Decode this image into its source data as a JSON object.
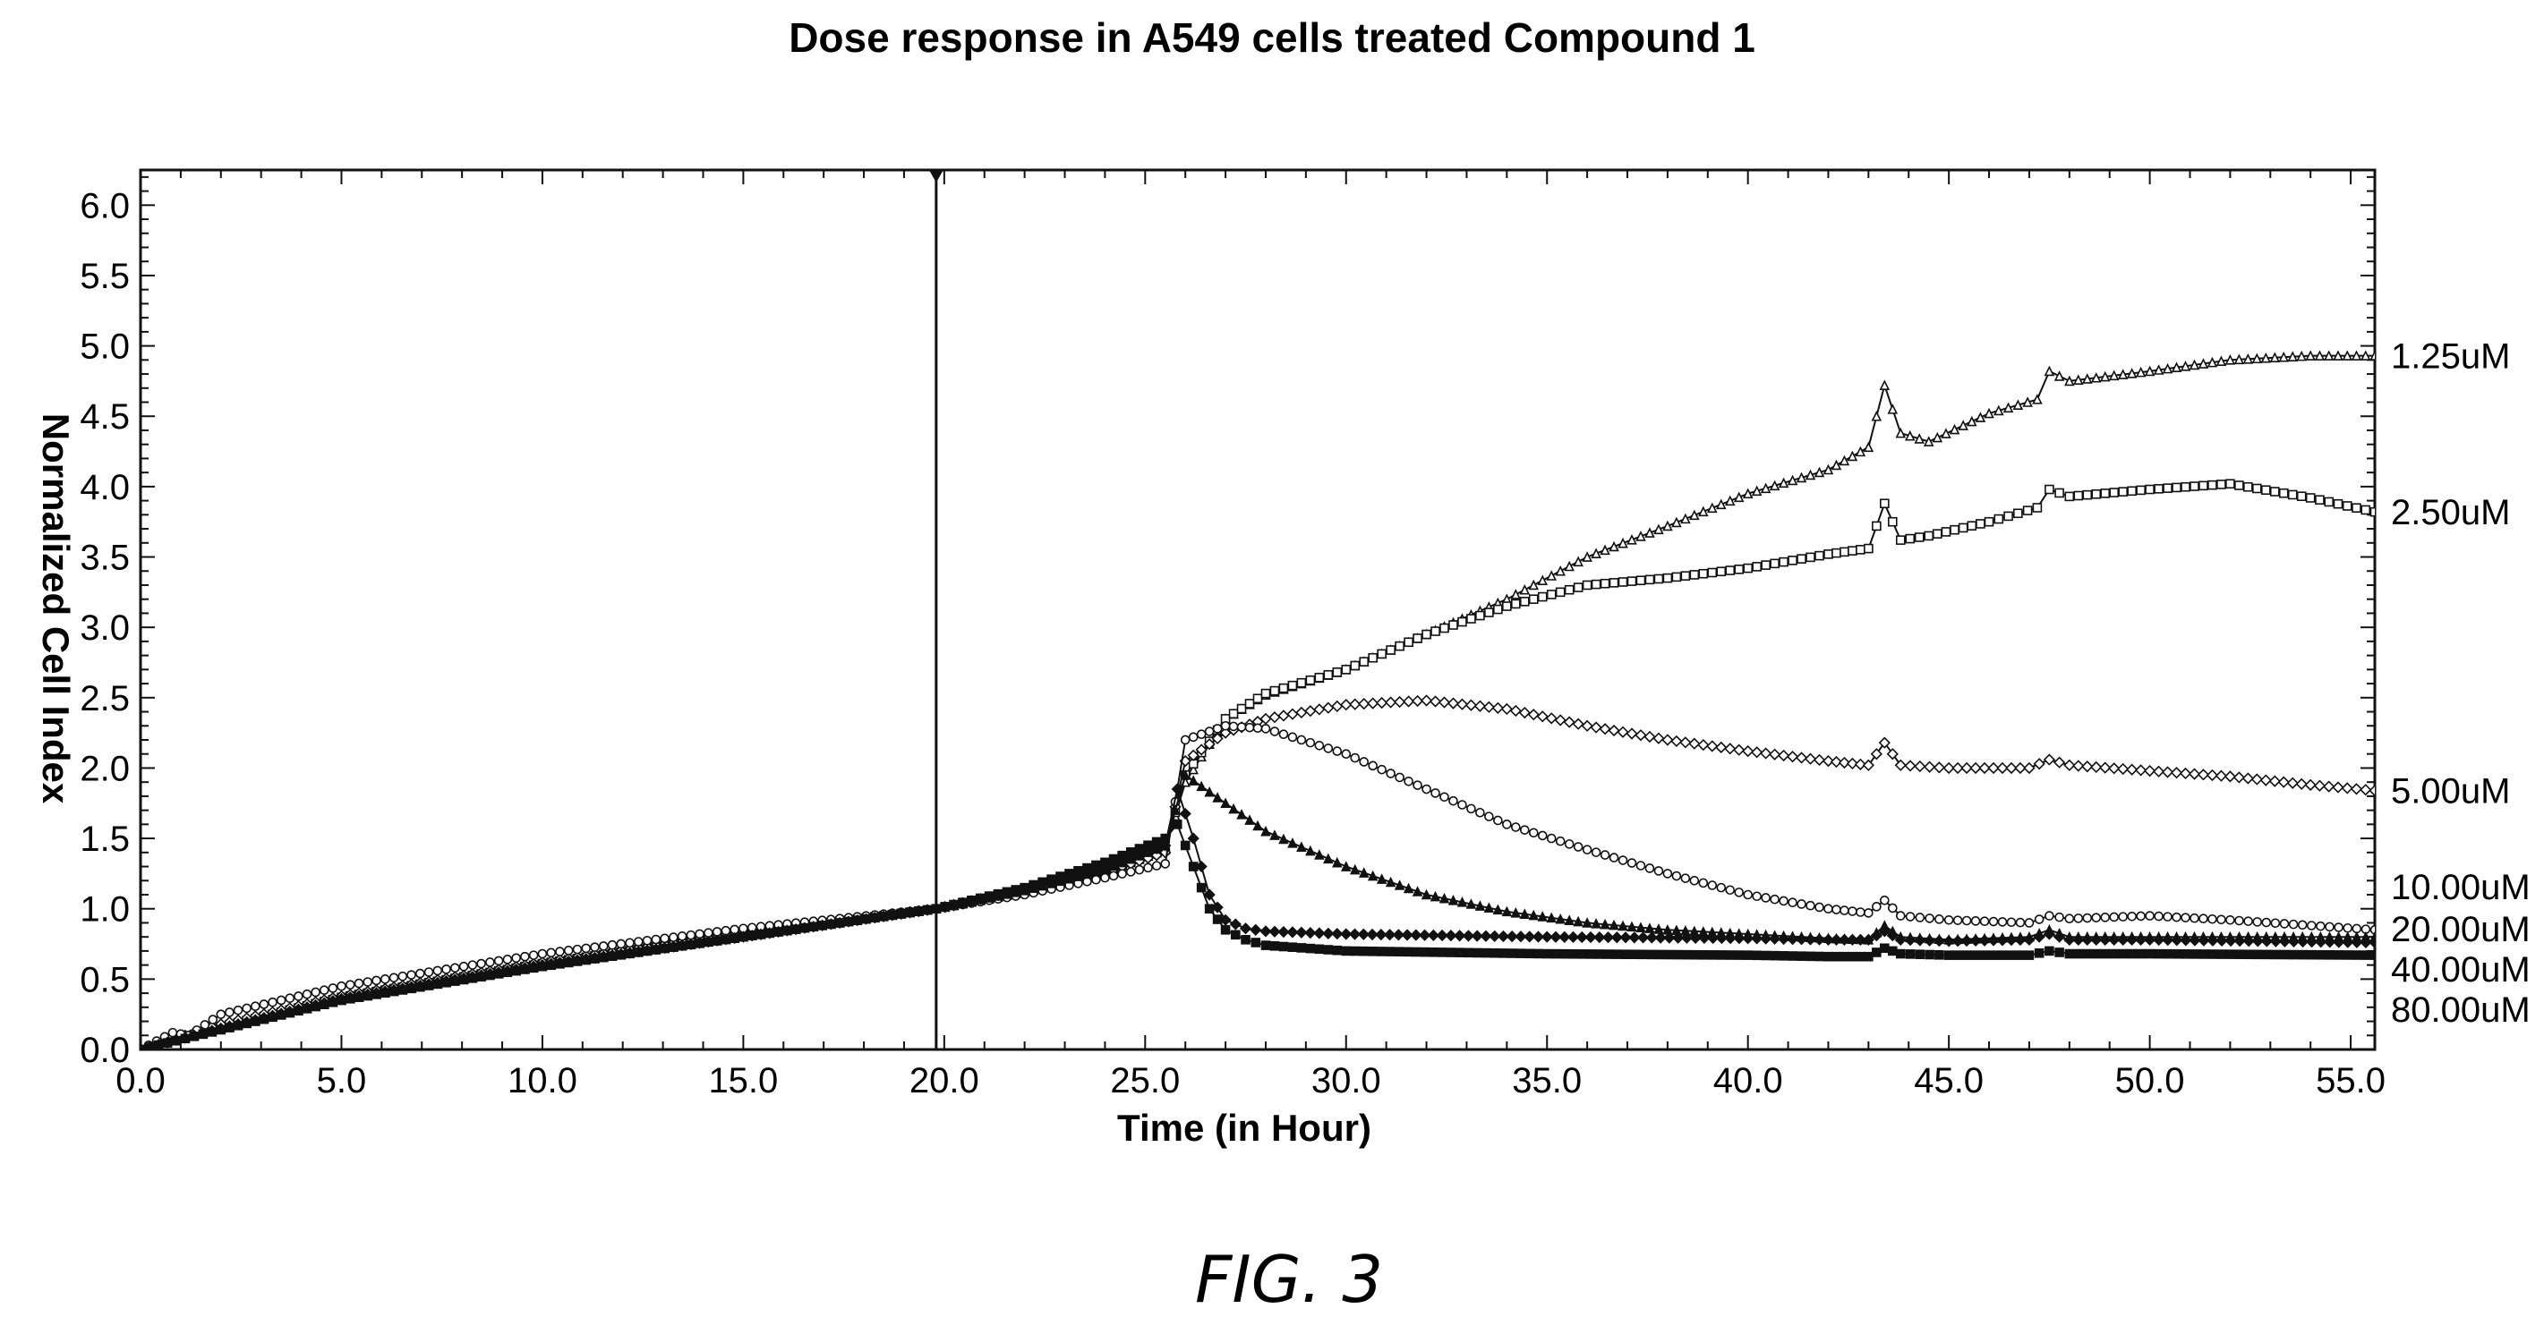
{
  "chart_data": {
    "type": "line",
    "title": "Dose response in A549 cells treated Compound 1",
    "xlabel": "Time (in Hour)",
    "ylabel": "Normalized Cell Index",
    "xlim": [
      0,
      55.6
    ],
    "ylim": [
      0,
      6.25
    ],
    "x_ticks": [
      "0.0",
      "5.0",
      "10.0",
      "15.0",
      "20.0",
      "25.0",
      "30.0",
      "35.0",
      "40.0",
      "45.0",
      "50.0",
      "55.0"
    ],
    "y_ticks": [
      "0.0",
      "0.5",
      "1.0",
      "1.5",
      "2.0",
      "2.5",
      "3.0",
      "3.5",
      "4.0",
      "4.5",
      "5.0",
      "5.5",
      "6.0"
    ],
    "marker_line_x": 19.8,
    "grid": false,
    "series": [
      {
        "name": "1.25uM",
        "marker": "triangle-open",
        "x": [
          0,
          2,
          5,
          10,
          15,
          19.8,
          22,
          24,
          25.5,
          26,
          27,
          28,
          30,
          32,
          34,
          36,
          38,
          40,
          42,
          43,
          43.4,
          43.8,
          44.5,
          46,
          47.2,
          47.5,
          48,
          50,
          52,
          54,
          55.6
        ],
        "y": [
          0,
          0.17,
          0.38,
          0.62,
          0.83,
          1.0,
          1.12,
          1.26,
          1.42,
          1.9,
          2.35,
          2.52,
          2.7,
          2.95,
          3.2,
          3.5,
          3.72,
          3.95,
          4.12,
          4.28,
          4.72,
          4.38,
          4.32,
          4.52,
          4.62,
          4.82,
          4.75,
          4.82,
          4.9,
          4.93,
          4.93
        ]
      },
      {
        "name": "2.50uM",
        "marker": "square-open",
        "x": [
          0,
          2,
          5,
          10,
          15,
          19.8,
          22,
          24,
          25.5,
          26,
          27,
          28,
          30,
          32,
          34,
          36,
          38,
          40,
          42,
          43,
          43.4,
          43.8,
          44.5,
          46,
          47.2,
          47.5,
          48,
          50,
          52,
          54,
          55.6
        ],
        "y": [
          0,
          0.16,
          0.37,
          0.61,
          0.82,
          1.0,
          1.12,
          1.27,
          1.42,
          1.95,
          2.35,
          2.53,
          2.7,
          2.95,
          3.15,
          3.3,
          3.35,
          3.42,
          3.52,
          3.56,
          3.88,
          3.62,
          3.65,
          3.75,
          3.85,
          3.98,
          3.93,
          3.98,
          4.02,
          3.92,
          3.82
        ]
      },
      {
        "name": "5.00uM",
        "marker": "diamond-open",
        "x": [
          0,
          2,
          5,
          10,
          15,
          19.8,
          22,
          24,
          25.5,
          26,
          27,
          28,
          30,
          32,
          34,
          36,
          38,
          40,
          42,
          43,
          43.4,
          43.8,
          45,
          47,
          47.5,
          48,
          50,
          52,
          54,
          55.6
        ],
        "y": [
          0,
          0.18,
          0.38,
          0.62,
          0.83,
          1.0,
          1.12,
          1.26,
          1.4,
          2.05,
          2.25,
          2.35,
          2.45,
          2.48,
          2.42,
          2.3,
          2.2,
          2.12,
          2.05,
          2.02,
          2.18,
          2.02,
          2.0,
          2.0,
          2.06,
          2.02,
          1.98,
          1.94,
          1.88,
          1.84
        ]
      },
      {
        "name": "10.00uM",
        "marker": "circle-open",
        "x": [
          0,
          0.8,
          1.2,
          2,
          5,
          10,
          15,
          19.8,
          22,
          24,
          25.5,
          26,
          27,
          28,
          30,
          32,
          34,
          36,
          38,
          40,
          42,
          43,
          43.4,
          43.8,
          45,
          47,
          47.5,
          48,
          50,
          52,
          55.6
        ],
        "y": [
          0,
          0.12,
          0.1,
          0.25,
          0.45,
          0.68,
          0.86,
          1.0,
          1.1,
          1.22,
          1.32,
          2.2,
          2.3,
          2.28,
          2.1,
          1.85,
          1.6,
          1.42,
          1.25,
          1.1,
          1.0,
          0.97,
          1.06,
          0.95,
          0.92,
          0.9,
          0.95,
          0.93,
          0.95,
          0.92,
          0.85
        ]
      },
      {
        "name": "20.00uM",
        "marker": "triangle-filled",
        "x": [
          0,
          2,
          5,
          10,
          15,
          19.8,
          22,
          24,
          25.5,
          26,
          27,
          28,
          30,
          32,
          34,
          36,
          38,
          40,
          42,
          43,
          43.4,
          43.8,
          45,
          47,
          47.5,
          48,
          50,
          52,
          55.6
        ],
        "y": [
          0,
          0.15,
          0.35,
          0.6,
          0.8,
          1.0,
          1.13,
          1.28,
          1.45,
          1.95,
          1.75,
          1.55,
          1.3,
          1.1,
          0.98,
          0.9,
          0.85,
          0.82,
          0.79,
          0.78,
          0.88,
          0.8,
          0.78,
          0.8,
          0.85,
          0.8,
          0.8,
          0.8,
          0.8
        ]
      },
      {
        "name": "40.00uM",
        "marker": "diamond-filled",
        "x": [
          0,
          2,
          5,
          10,
          15,
          19.8,
          22,
          24,
          25.5,
          25.8,
          26.2,
          26.6,
          27,
          27.5,
          28,
          30,
          35,
          40,
          42,
          43,
          43.4,
          43.8,
          45,
          47,
          47.5,
          48,
          50,
          55.6
        ],
        "y": [
          0,
          0.15,
          0.36,
          0.6,
          0.8,
          1.0,
          1.14,
          1.3,
          1.45,
          1.85,
          1.5,
          1.1,
          0.92,
          0.86,
          0.84,
          0.82,
          0.8,
          0.79,
          0.78,
          0.78,
          0.84,
          0.78,
          0.77,
          0.78,
          0.82,
          0.78,
          0.78,
          0.76
        ]
      },
      {
        "name": "80.00uM",
        "marker": "square-filled",
        "x": [
          0,
          2,
          5,
          10,
          15,
          19.8,
          22,
          24,
          25.5,
          25.8,
          26.2,
          26.6,
          27,
          27.5,
          28,
          30,
          35,
          40,
          42,
          43,
          43.4,
          43.8,
          45,
          47,
          47.5,
          48,
          50,
          55.6
        ],
        "y": [
          0,
          0.14,
          0.35,
          0.59,
          0.8,
          1.0,
          1.15,
          1.33,
          1.5,
          1.6,
          1.3,
          1.0,
          0.85,
          0.78,
          0.74,
          0.7,
          0.68,
          0.67,
          0.66,
          0.66,
          0.72,
          0.68,
          0.67,
          0.67,
          0.7,
          0.68,
          0.68,
          0.67
        ]
      }
    ]
  },
  "figure_label": "FIG.  3"
}
